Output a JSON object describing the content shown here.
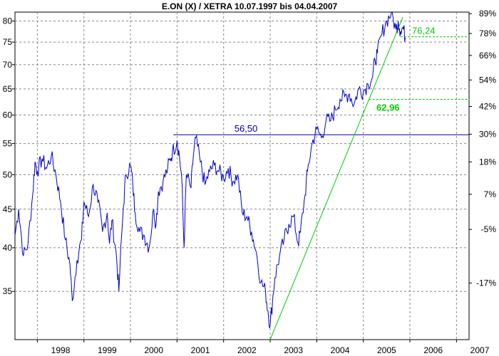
{
  "chart_data": {
    "type": "line",
    "title": "E.ON (X) / XETRA 10.07.1997 bis 04.04.2007",
    "x_ticks": [
      "1998",
      "1999",
      "2000",
      "2001",
      "2002",
      "2003",
      "2004",
      "2005",
      "2006",
      "2007"
    ],
    "x_tick_values": [
      1998,
      1999,
      2000,
      2001,
      2002,
      2003,
      2004,
      2005,
      2006,
      2007
    ],
    "xlim": [
      1997.52,
      2007.27
    ],
    "y_scale": "log",
    "ylim": [
      30.2,
      82.2
    ],
    "y_ticks": [
      35,
      40,
      45,
      50,
      55,
      60,
      65,
      70,
      75,
      80
    ],
    "y_tick_labels": [
      "35",
      "40",
      "45",
      "50",
      "55",
      "60",
      "65",
      "70",
      "75",
      "80"
    ],
    "right_axis_labels": [
      "89%",
      "78%",
      "66%",
      "54%",
      "42%",
      "30%",
      "18%",
      "7%",
      "-5%",
      "-17%"
    ],
    "right_axis_values": [
      81.8,
      77.0,
      72.0,
      66.8,
      61.6,
      56.6,
      52.0,
      47.1,
      42.3,
      35.9
    ],
    "grid": true,
    "series": [
      {
        "values_note": "",
        "x": [
          1997.52,
          1997.6,
          1997.7,
          1997.8,
          1997.9,
          1997.95,
          1998.0,
          1998.1,
          1998.2,
          1998.3,
          1998.4,
          1998.5,
          1998.6,
          1998.7,
          1998.75,
          1998.85,
          1998.95,
          1999.0,
          1999.1,
          1999.2,
          1999.3,
          1999.4,
          1999.5,
          1999.55,
          1999.6,
          1999.7,
          1999.75,
          1999.85,
          1999.9,
          2000.0,
          2000.05,
          2000.1,
          2000.2,
          2000.3,
          2000.4,
          2000.5,
          2000.55,
          2000.6,
          2000.7,
          2000.8,
          2000.85,
          2000.9,
          2001.0,
          2001.05,
          2001.1,
          2001.15,
          2001.2,
          2001.3,
          2001.35,
          2001.4,
          2001.5,
          2001.6,
          2001.7,
          2001.8,
          2001.9,
          2002.0,
          2002.1,
          2002.2,
          2002.3,
          2002.4,
          2002.5,
          2002.6,
          2002.7,
          2002.8,
          2002.9,
          2002.95,
          2003.0,
          2003.05,
          2003.1,
          2003.2,
          2003.3,
          2003.4,
          2003.5,
          2003.6,
          2003.65,
          2003.75,
          2003.8,
          2003.9,
          2004.0,
          2004.1,
          2004.2,
          2004.3,
          2004.4,
          2004.5,
          2004.6,
          2004.7,
          2004.8,
          2004.9,
          2005.0,
          2005.1,
          2005.2,
          2005.25,
          2005.3,
          2005.4,
          2005.5,
          2005.6,
          2005.7,
          2005.75,
          2005.8,
          2005.85,
          2005.9
        ],
        "values": [
          41.5,
          45.0,
          39.0,
          40.5,
          47.0,
          52.0,
          50.5,
          52.5,
          51.0,
          53.0,
          50.0,
          46.0,
          41.0,
          38.0,
          34.0,
          38.5,
          41.0,
          46.0,
          44.0,
          48.5,
          46.0,
          42.0,
          44.5,
          40.5,
          43.5,
          39.0,
          35.0,
          45.5,
          50.0,
          51.5,
          48.5,
          44.5,
          42.0,
          41.5,
          40.0,
          45.0,
          43.0,
          47.5,
          49.0,
          51.0,
          52.5,
          53.5,
          55.5,
          53.0,
          49.5,
          40.0,
          50.0,
          48.0,
          53.0,
          56.0,
          52.0,
          48.5,
          50.5,
          51.5,
          50.5,
          49.5,
          51.0,
          49.0,
          50.0,
          44.5,
          44.0,
          42.0,
          39.5,
          36.0,
          35.0,
          33.0,
          31.5,
          34.0,
          36.5,
          39.0,
          41.0,
          43.0,
          44.0,
          40.5,
          42.0,
          47.0,
          50.5,
          55.0,
          57.5,
          56.0,
          59.0,
          59.0,
          61.0,
          63.0,
          63.5,
          64.0,
          62.0,
          65.0,
          64.5,
          66.0,
          67.5,
          71.0,
          72.5,
          77.0,
          80.0,
          82.0,
          78.0,
          80.0,
          77.5,
          78.5,
          76.0
        ]
      }
    ],
    "lines": [
      {
        "label": "56,50",
        "value": 56.5,
        "x_start": 2000.92,
        "x_end": 2007.27
      },
      {
        "label": "62,96",
        "value": 62.96,
        "x_start": 2005.12,
        "x_end": 2007.27
      },
      {
        "label": "76,24",
        "value": 76.24,
        "x_start": 2005.8,
        "x_end": 2007.27
      },
      {
        "label": "",
        "from": [
          2003.0,
          30.2
        ],
        "to": [
          2005.85,
          81.0
        ]
      }
    ]
  },
  "colors": {
    "price": "#0000cc",
    "resistance": "#000099",
    "support": "#00cc00",
    "grid": "#888888",
    "frame": "#000000"
  }
}
